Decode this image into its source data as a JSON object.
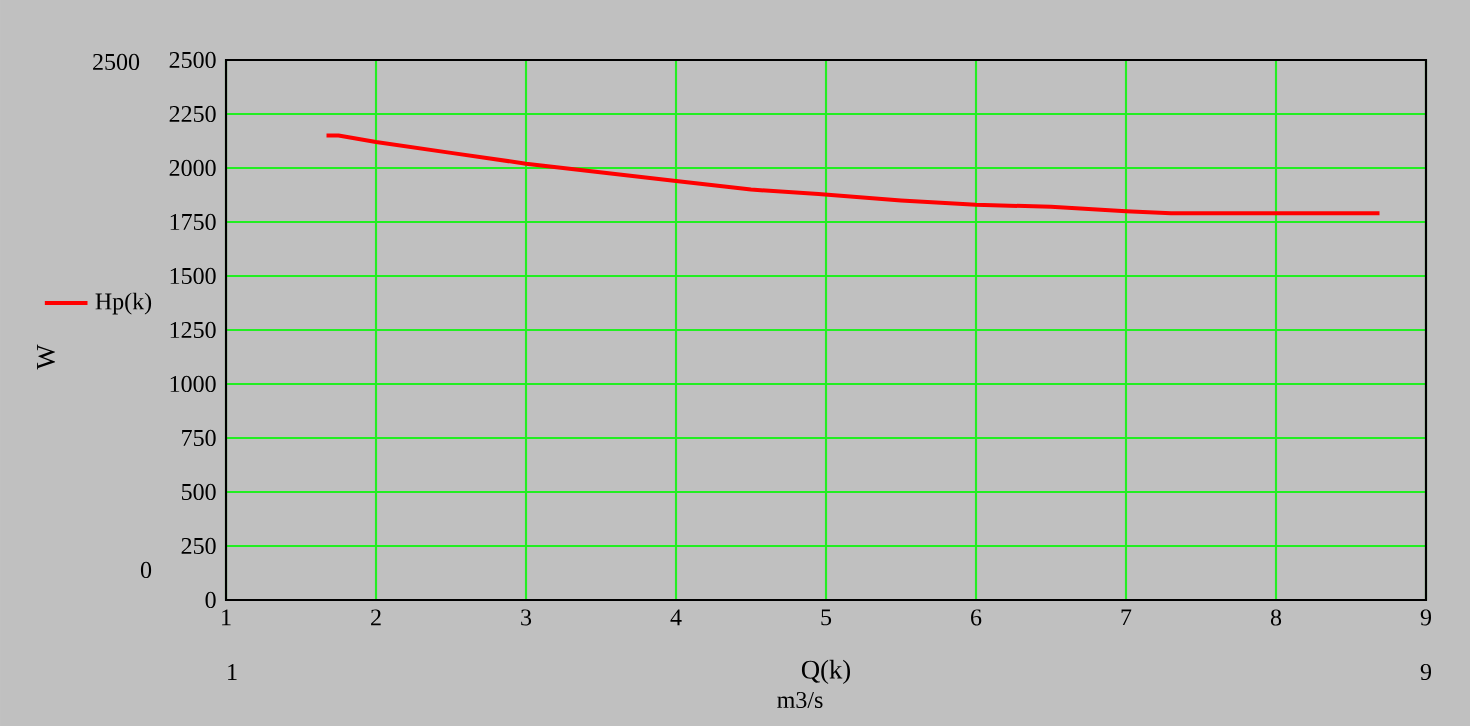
{
  "chart_data": {
    "type": "line",
    "xlabel": "Q(k)",
    "ylabel": "W",
    "annotations": [
      "m3/s",
      "2500",
      "0",
      "1",
      "9"
    ],
    "series": [
      {
        "name": "Hp(k)",
        "color": "#ff0000",
        "x": [
          1.67,
          1.75,
          2,
          2.5,
          3,
          3.5,
          4,
          4.5,
          4.95,
          5.5,
          6,
          6.5,
          7,
          7.3,
          8,
          8.69
        ],
        "values": [
          2150,
          2150,
          2120,
          2070,
          2020,
          1980,
          1940,
          1900,
          1880,
          1850,
          1830,
          1820,
          1800,
          1790,
          1790,
          1790
        ]
      }
    ],
    "xlim": [
      1,
      9
    ],
    "ylim": [
      0,
      2500
    ],
    "xticks": [
      1,
      2,
      3,
      4,
      5,
      6,
      7,
      8,
      9
    ],
    "yticks": [
      0,
      250,
      500,
      750,
      1000,
      1250,
      1500,
      1750,
      2000,
      2250,
      2500
    ],
    "grid": true,
    "legend": "left",
    "line_style": "solid",
    "marker": "none"
  }
}
